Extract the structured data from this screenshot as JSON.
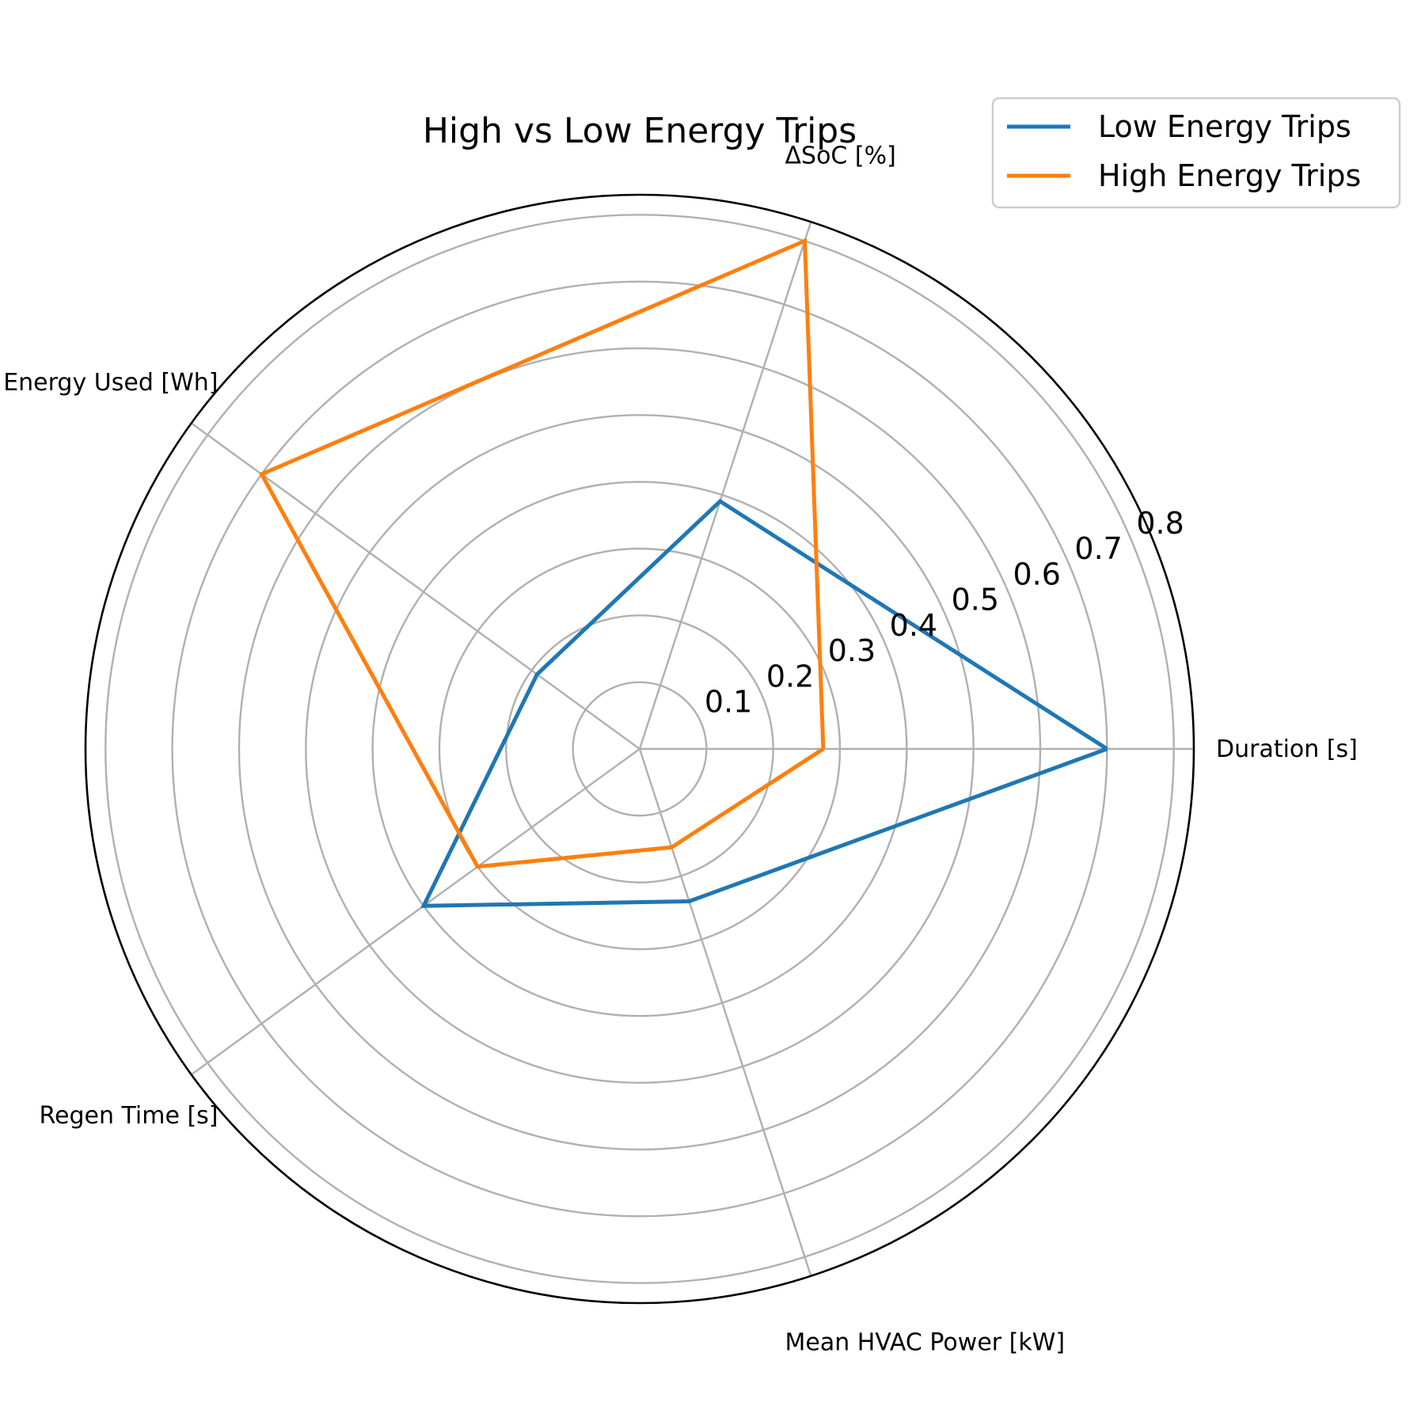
{
  "chart_data": {
    "type": "radar",
    "title": "High vs Low Energy Trips",
    "categories": [
      "Duration [s]",
      "ΔSoC [%]",
      "Energy Used [Wh]",
      "Regen Time [s]",
      "Mean HVAC Power [kW]"
    ],
    "series": [
      {
        "name": "Low Energy Trips",
        "values": [
          0.7,
          0.39,
          0.19,
          0.4,
          0.24
        ],
        "color": "#1f77b4"
      },
      {
        "name": "High Energy Trips",
        "values": [
          0.275,
          0.8,
          0.7,
          0.3,
          0.155
        ],
        "color": "#ff7f0e"
      }
    ],
    "radial_ticks": [
      "0.1",
      "0.2",
      "0.3",
      "0.4",
      "0.5",
      "0.6",
      "0.7",
      "0.8"
    ],
    "rlim": [
      0,
      0.83
    ],
    "grid": true,
    "legend_position": "top-right"
  }
}
